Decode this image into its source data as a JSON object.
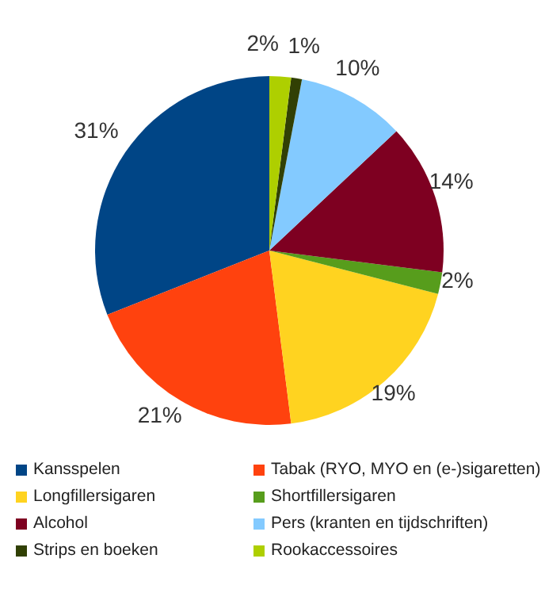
{
  "chart_data": {
    "type": "pie",
    "categories": [
      "Kansspelen",
      "Tabak (RYO, MYO en (e-)sigaretten)",
      "Longfillersigaren",
      "Shortfillersigaren",
      "Alcohol",
      "Pers (kranten en tijdschriften)",
      "Strips en boeken",
      "Rookaccessoires"
    ],
    "values": [
      31,
      21,
      19,
      2,
      14,
      10,
      1,
      2
    ],
    "colors": [
      "#004586",
      "#ff420e",
      "#ffd320",
      "#579d1c",
      "#7e0021",
      "#83caff",
      "#314004",
      "#aecf00"
    ],
    "value_labels": [
      "31%",
      "21%",
      "19%",
      "2%",
      "14%",
      "10%",
      "1%",
      "2%"
    ],
    "legend": "bottom"
  }
}
